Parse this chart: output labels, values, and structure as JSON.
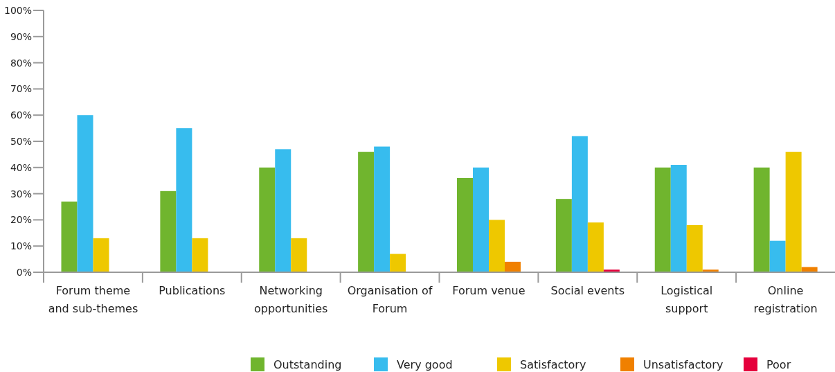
{
  "chart_data": {
    "type": "bar",
    "categories": [
      "Forum theme\nand sub-themes",
      "Publications",
      "Networking\nopportunities",
      "Organisation of\nForum",
      "Forum venue",
      "Social events",
      "Logistical\nsupport",
      "Online\nregistration"
    ],
    "series": [
      {
        "name": "Outstanding",
        "color": "#70b52e",
        "values": [
          27,
          31,
          40,
          46,
          36,
          28,
          40,
          40
        ]
      },
      {
        "name": "Very good",
        "color": "#37bcee",
        "values": [
          60,
          55,
          47,
          48,
          40,
          52,
          41,
          12
        ]
      },
      {
        "name": "Satisfactory",
        "color": "#eec800",
        "values": [
          13,
          13,
          13,
          7,
          20,
          19,
          18,
          46
        ]
      },
      {
        "name": "Unsatisfactory",
        "color": "#f08000",
        "values": [
          null,
          null,
          null,
          null,
          4,
          null,
          1,
          2
        ]
      },
      {
        "name": "Poor",
        "color": "#e5003c",
        "values": [
          null,
          null,
          null,
          null,
          null,
          1,
          null,
          null
        ]
      }
    ],
    "ylim": [
      0,
      100
    ],
    "yticks": [
      {
        "value": 0,
        "label": "0%"
      },
      {
        "value": 10,
        "label": "10%"
      },
      {
        "value": 20,
        "label": "20%"
      },
      {
        "value": 30,
        "label": "30%"
      },
      {
        "value": 40,
        "label": "40%"
      },
      {
        "value": 50,
        "label": "50%"
      },
      {
        "value": 60,
        "label": "60%"
      },
      {
        "value": 70,
        "label": "70%"
      },
      {
        "value": 80,
        "label": "80%"
      },
      {
        "value": 90,
        "label": "90%"
      },
      {
        "value": 100,
        "label": "100%"
      }
    ],
    "legend": "bottom"
  }
}
